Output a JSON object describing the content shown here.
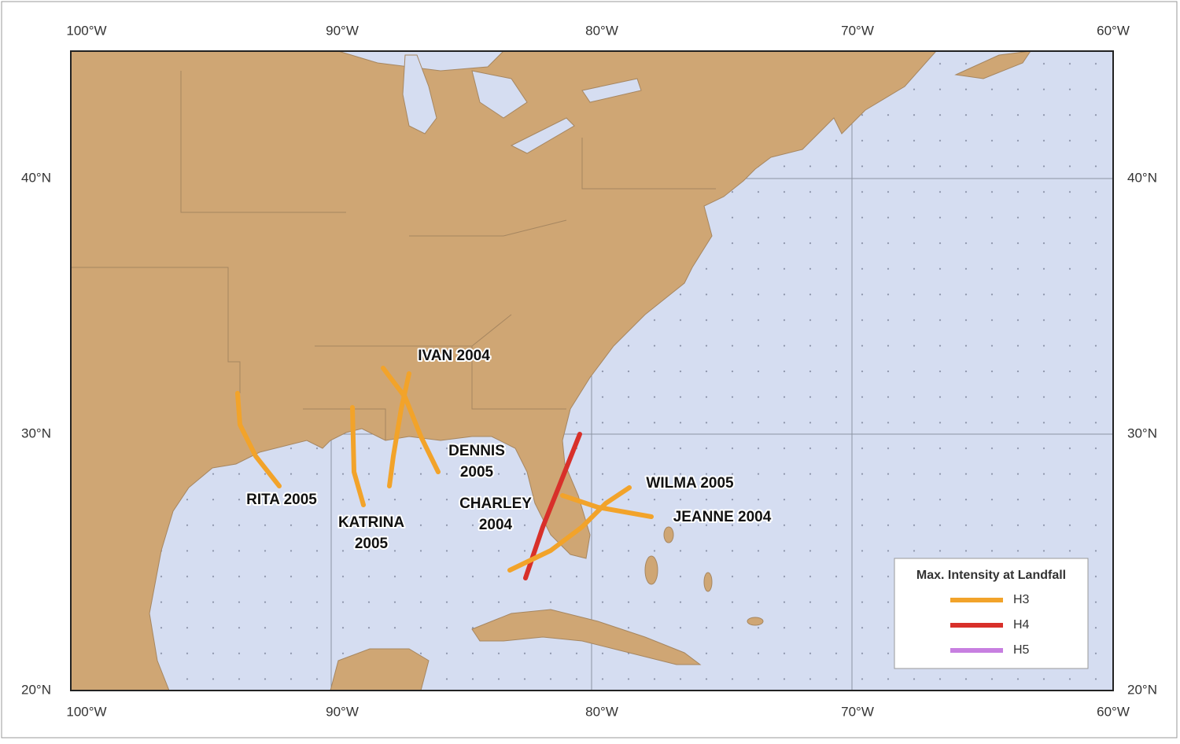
{
  "map": {
    "lon_labels": [
      "100°W",
      "90°W",
      "80°W",
      "70°W",
      "60°W"
    ],
    "lat_labels": [
      "20°N",
      "30°N",
      "40°N"
    ],
    "storms": [
      {
        "lines": [
          "RITA 2005"
        ]
      },
      {
        "lines": [
          "KATRINA",
          "2005"
        ]
      },
      {
        "lines": [
          "IVAN 2004"
        ]
      },
      {
        "lines": [
          "DENNIS",
          "2005"
        ]
      },
      {
        "lines": [
          "CHARLEY",
          "2004"
        ]
      },
      {
        "lines": [
          "WILMA 2005"
        ]
      },
      {
        "lines": [
          "JEANNE 2004"
        ]
      }
    ],
    "legend": {
      "title": "Max. Intensity at Landfall",
      "items": [
        {
          "name": "H3",
          "color": "#f2a32a"
        },
        {
          "name": "H4",
          "color": "#d8302a"
        },
        {
          "name": "H5",
          "color": "#c77fe0"
        }
      ]
    }
  }
}
